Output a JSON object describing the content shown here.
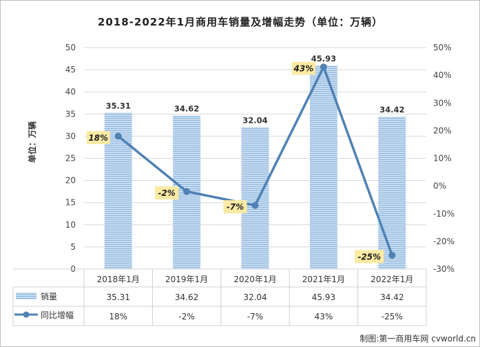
{
  "chart_data": {
    "type": "bar",
    "title": "2018-2022年1月商用车销量及增幅走势（单位：万辆）",
    "ylabel": "单位：万辆",
    "categories": [
      "2018年1月",
      "2019年1月",
      "2020年1月",
      "2021年1月",
      "2022年1月"
    ],
    "ylim": [
      0,
      50
    ],
    "yticks": [
      0,
      5,
      10,
      15,
      20,
      25,
      30,
      35,
      40,
      45,
      50
    ],
    "y2lim": [
      -30,
      50
    ],
    "y2ticks": [
      "-30%",
      "-20%",
      "-10%",
      "0%",
      "10%",
      "20%",
      "30%",
      "40%",
      "50%"
    ],
    "series": [
      {
        "name": "销量",
        "type": "bar",
        "values": [
          35.31,
          34.62,
          32.04,
          45.93,
          34.42
        ],
        "labels": [
          "35.31",
          "34.62",
          "32.04",
          "45.93",
          "34.42"
        ],
        "color": "#9dc3e6"
      },
      {
        "name": "同比增幅",
        "type": "line",
        "axis": "right",
        "values": [
          18,
          -2,
          -7,
          43,
          -25
        ],
        "labels": [
          "18%",
          "-2%",
          "-7%",
          "43%",
          "-25%"
        ],
        "color": "#4f81b4"
      }
    ],
    "data_table": true,
    "grid": "horizontal",
    "label_box_color": "#fbeaa3"
  },
  "source": "制图:第一商用车网 cvworld.cn"
}
